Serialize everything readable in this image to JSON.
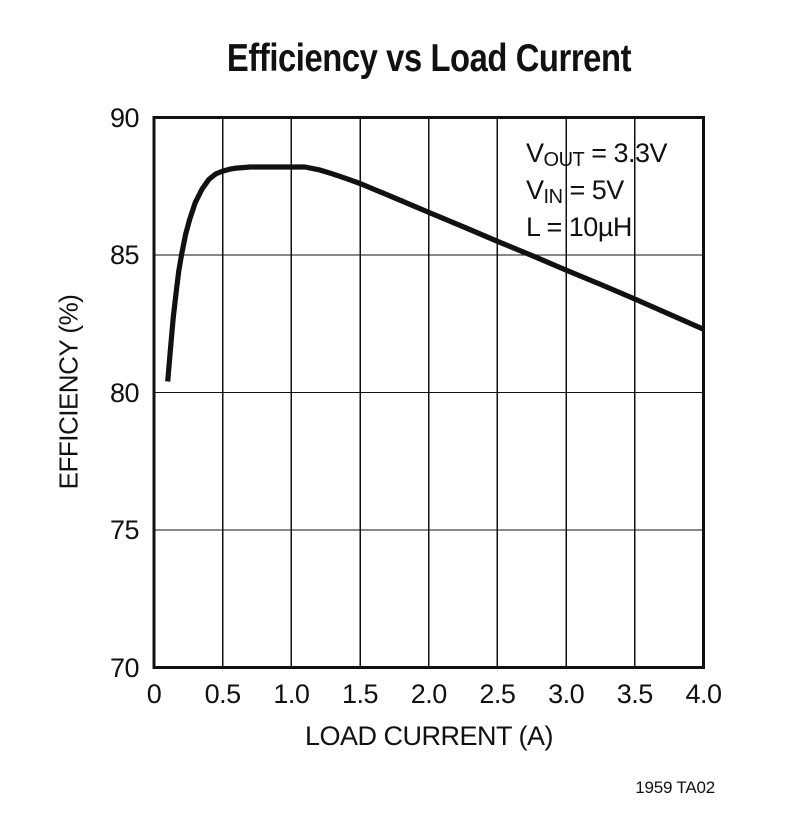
{
  "chart_data": {
    "type": "line",
    "title": "Efficiency vs Load Current",
    "xlabel": "LOAD CURRENT (A)",
    "ylabel": "EFFICIENCY (%)",
    "xlim": [
      0,
      4.0
    ],
    "ylim": [
      70,
      90
    ],
    "xticks": [
      0,
      0.5,
      1.0,
      1.5,
      2.0,
      2.5,
      3.0,
      3.5,
      4.0
    ],
    "xtick_labels": [
      "0",
      "0.5",
      "1.0",
      "1.5",
      "2.0",
      "2.5",
      "3.0",
      "3.5",
      "4.0"
    ],
    "yticks": [
      90,
      85,
      80,
      75,
      70
    ],
    "ytick_labels": [
      "90",
      "85",
      "80",
      "75",
      "70"
    ],
    "grid": true,
    "legend_position": "none",
    "axis_color": "#111111",
    "line_color": "#111111",
    "series": [
      {
        "name": "Efficiency (VOUT = 3.3V, VIN = 5V, L = 10µH)",
        "points": [
          [
            0.1,
            80.4
          ],
          [
            0.12,
            81.6
          ],
          [
            0.14,
            82.7
          ],
          [
            0.16,
            83.6
          ],
          [
            0.18,
            84.4
          ],
          [
            0.2,
            85.0
          ],
          [
            0.23,
            85.75
          ],
          [
            0.26,
            86.3
          ],
          [
            0.3,
            86.9
          ],
          [
            0.35,
            87.4
          ],
          [
            0.4,
            87.75
          ],
          [
            0.45,
            87.95
          ],
          [
            0.5,
            88.05
          ],
          [
            0.55,
            88.12
          ],
          [
            0.6,
            88.16
          ],
          [
            0.7,
            88.2
          ],
          [
            0.8,
            88.2
          ],
          [
            0.9,
            88.2
          ],
          [
            1.0,
            88.2
          ],
          [
            1.1,
            88.2
          ],
          [
            1.2,
            88.1
          ],
          [
            1.3,
            87.95
          ],
          [
            1.4,
            87.78
          ],
          [
            1.5,
            87.6
          ],
          [
            1.75,
            87.08
          ],
          [
            2.0,
            86.55
          ],
          [
            2.25,
            86.03
          ],
          [
            2.5,
            85.5
          ],
          [
            2.75,
            84.98
          ],
          [
            3.0,
            84.45
          ],
          [
            3.25,
            83.93
          ],
          [
            3.5,
            83.4
          ],
          [
            3.75,
            82.85
          ],
          [
            4.0,
            82.3
          ]
        ]
      }
    ]
  },
  "annotation": {
    "lines": [
      {
        "base": "V",
        "sub": "OUT",
        "rest": " = 3.3V"
      },
      {
        "base": "V",
        "sub": "IN",
        "rest": " = 5V"
      },
      {
        "base": "L",
        "sub": "",
        "rest": " = 10µH"
      }
    ]
  },
  "footer": {
    "credit": "1959 TA02"
  }
}
